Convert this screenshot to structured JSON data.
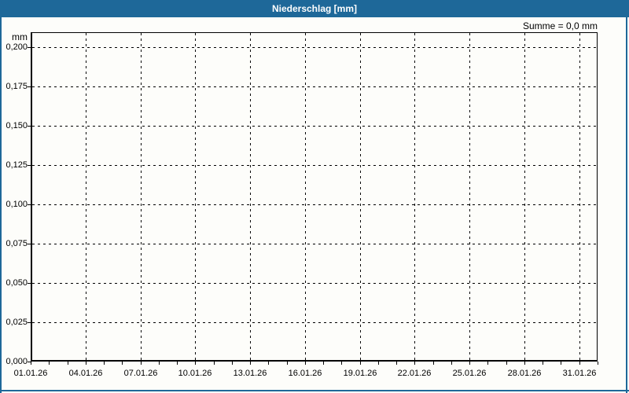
{
  "window": {
    "title": "Niederschlag [mm]"
  },
  "summary_label": "Summe = 0,0 mm",
  "colors": {
    "titlebar_bg": "#1e6899",
    "titlebar_text": "#ffffff",
    "frame_border": "#1e6899",
    "background": "#fdfdfa",
    "axis": "#000000",
    "grid": "#000000",
    "text": "#000000"
  },
  "chart_data": {
    "type": "bar",
    "title": "Niederschlag [mm]",
    "ylabel": "mm",
    "xlabel": "",
    "summary": "Summe = 0,0 mm",
    "grid": true,
    "grid_style": "dashed",
    "ylim": [
      0,
      0.2095
    ],
    "y_tick_labels": [
      "0,200",
      "0,175",
      "0,150",
      "0,125",
      "0,100",
      "0,075",
      "0,050",
      "0,025",
      "0,000"
    ],
    "y_tick_values": [
      0.2,
      0.175,
      0.15,
      0.125,
      0.1,
      0.075,
      0.05,
      0.025,
      0.0
    ],
    "x_tick_labels": [
      "01.01.26",
      "04.01.26",
      "07.01.26",
      "10.01.26",
      "13.01.26",
      "16.01.26",
      "19.01.26",
      "22.01.26",
      "25.01.26",
      "28.01.26",
      "31.01.26"
    ],
    "x_tick_days": [
      1,
      4,
      7,
      10,
      13,
      16,
      19,
      22,
      25,
      28,
      31
    ],
    "days_total": 31,
    "minor_tick_every_day": true,
    "series": [
      {
        "name": "Niederschlag",
        "unit": "mm",
        "sum": 0.0,
        "values": [
          0,
          0,
          0,
          0,
          0,
          0,
          0,
          0,
          0,
          0,
          0,
          0,
          0,
          0,
          0,
          0,
          0,
          0,
          0,
          0,
          0,
          0,
          0,
          0,
          0,
          0,
          0,
          0,
          0,
          0,
          0
        ]
      }
    ]
  }
}
